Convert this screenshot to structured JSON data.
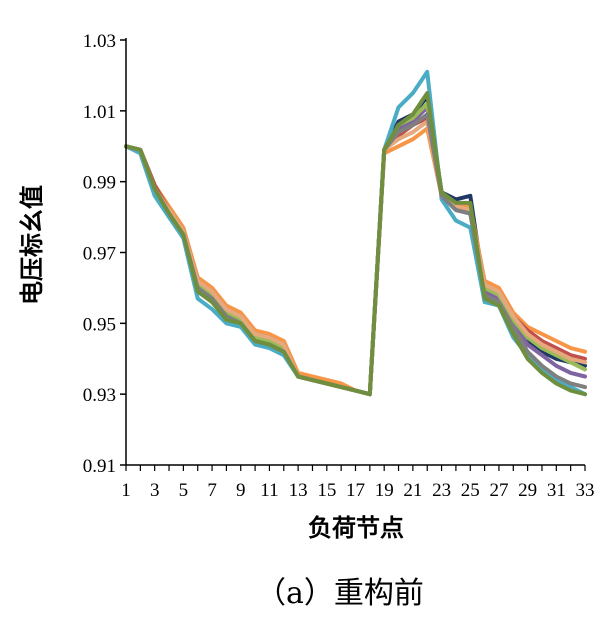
{
  "chart_data": {
    "type": "line",
    "xlabel": "负荷节点",
    "ylabel": "电压标幺值",
    "caption": "（a）重构前",
    "xlim": [
      1,
      33
    ],
    "ylim": [
      0.91,
      1.03
    ],
    "y_ticks": [
      "0.91",
      "0.93",
      "0.95",
      "0.97",
      "0.99",
      "1.01",
      "1.03"
    ],
    "x_tick_labels": [
      "1",
      "3",
      "5",
      "7",
      "9",
      "11",
      "13",
      "15",
      "17",
      "19",
      "21",
      "23",
      "25",
      "27",
      "29",
      "31",
      "33"
    ],
    "x": [
      1,
      2,
      3,
      4,
      5,
      6,
      7,
      8,
      9,
      10,
      11,
      12,
      13,
      14,
      15,
      16,
      17,
      18,
      19,
      20,
      21,
      22,
      23,
      24,
      25,
      26,
      27,
      28,
      29,
      30,
      31,
      32,
      33
    ],
    "grid": false,
    "legend": "none",
    "series": [
      {
        "color": "#1f3864",
        "values": [
          1.0,
          0.999,
          0.989,
          0.982,
          0.976,
          0.961,
          0.958,
          0.953,
          0.951,
          0.946,
          0.945,
          0.943,
          0.935,
          0.934,
          0.933,
          0.932,
          0.931,
          0.93,
          0.999,
          1.007,
          1.009,
          1.014,
          0.987,
          0.985,
          0.986,
          0.959,
          0.958,
          0.951,
          0.945,
          0.942,
          0.94,
          0.939,
          0.938
        ]
      },
      {
        "color": "#4bacc6",
        "values": [
          1.0,
          0.998,
          0.986,
          0.98,
          0.974,
          0.957,
          0.954,
          0.95,
          0.949,
          0.944,
          0.943,
          0.941,
          0.935,
          0.934,
          0.933,
          0.932,
          0.931,
          0.93,
          0.999,
          1.011,
          1.015,
          1.021,
          0.985,
          0.979,
          0.977,
          0.956,
          0.955,
          0.946,
          0.941,
          0.937,
          0.934,
          0.932,
          0.93
        ]
      },
      {
        "color": "#f79646",
        "values": [
          1.0,
          0.999,
          0.989,
          0.983,
          0.977,
          0.963,
          0.96,
          0.955,
          0.953,
          0.948,
          0.947,
          0.945,
          0.936,
          0.935,
          0.934,
          0.933,
          0.931,
          0.93,
          0.998,
          1.0,
          1.002,
          1.005,
          0.986,
          0.984,
          0.983,
          0.962,
          0.96,
          0.953,
          0.949,
          0.947,
          0.945,
          0.943,
          0.942
        ]
      },
      {
        "color": "#c0504d",
        "values": [
          1.0,
          0.999,
          0.989,
          0.982,
          0.976,
          0.962,
          0.959,
          0.954,
          0.952,
          0.947,
          0.946,
          0.944,
          0.935,
          0.934,
          0.933,
          0.932,
          0.931,
          0.93,
          0.999,
          1.003,
          1.006,
          1.008,
          0.987,
          0.983,
          0.982,
          0.961,
          0.959,
          0.952,
          0.948,
          0.945,
          0.943,
          0.941,
          0.94
        ]
      },
      {
        "color": "#8064a2",
        "values": [
          1.0,
          0.999,
          0.988,
          0.981,
          0.975,
          0.96,
          0.957,
          0.952,
          0.951,
          0.946,
          0.945,
          0.943,
          0.935,
          0.934,
          0.933,
          0.932,
          0.931,
          0.93,
          0.999,
          1.005,
          1.007,
          1.011,
          0.986,
          0.982,
          0.981,
          0.959,
          0.957,
          0.95,
          0.944,
          0.941,
          0.938,
          0.936,
          0.935
        ]
      },
      {
        "color": "#9bbb59",
        "values": [
          1.0,
          0.999,
          0.988,
          0.981,
          0.975,
          0.961,
          0.958,
          0.953,
          0.951,
          0.946,
          0.945,
          0.943,
          0.935,
          0.934,
          0.933,
          0.932,
          0.931,
          0.93,
          0.999,
          1.006,
          1.008,
          1.012,
          0.986,
          0.983,
          0.982,
          0.96,
          0.958,
          0.951,
          0.946,
          0.943,
          0.941,
          0.939,
          0.937
        ]
      },
      {
        "color": "#e6a87c",
        "values": [
          1.0,
          0.999,
          0.988,
          0.982,
          0.976,
          0.962,
          0.959,
          0.954,
          0.952,
          0.947,
          0.946,
          0.944,
          0.935,
          0.934,
          0.933,
          0.932,
          0.931,
          0.93,
          0.999,
          1.002,
          1.004,
          1.007,
          0.986,
          0.983,
          0.982,
          0.961,
          0.959,
          0.952,
          0.947,
          0.944,
          0.942,
          0.94,
          0.939
        ]
      },
      {
        "color": "#7f7f7f",
        "values": [
          1.0,
          0.999,
          0.988,
          0.981,
          0.975,
          0.96,
          0.957,
          0.952,
          0.95,
          0.945,
          0.944,
          0.942,
          0.935,
          0.934,
          0.933,
          0.932,
          0.931,
          0.93,
          0.999,
          1.004,
          1.006,
          1.009,
          0.986,
          0.982,
          0.981,
          0.958,
          0.956,
          0.949,
          0.942,
          0.938,
          0.935,
          0.933,
          0.932
        ]
      },
      {
        "color": "#6f8f3f",
        "values": [
          1.0,
          0.999,
          0.988,
          0.981,
          0.975,
          0.959,
          0.956,
          0.951,
          0.95,
          0.945,
          0.944,
          0.942,
          0.935,
          0.934,
          0.933,
          0.932,
          0.931,
          0.93,
          0.999,
          1.006,
          1.009,
          1.015,
          0.987,
          0.984,
          0.984,
          0.957,
          0.955,
          0.947,
          0.94,
          0.936,
          0.933,
          0.931,
          0.93
        ]
      }
    ]
  }
}
